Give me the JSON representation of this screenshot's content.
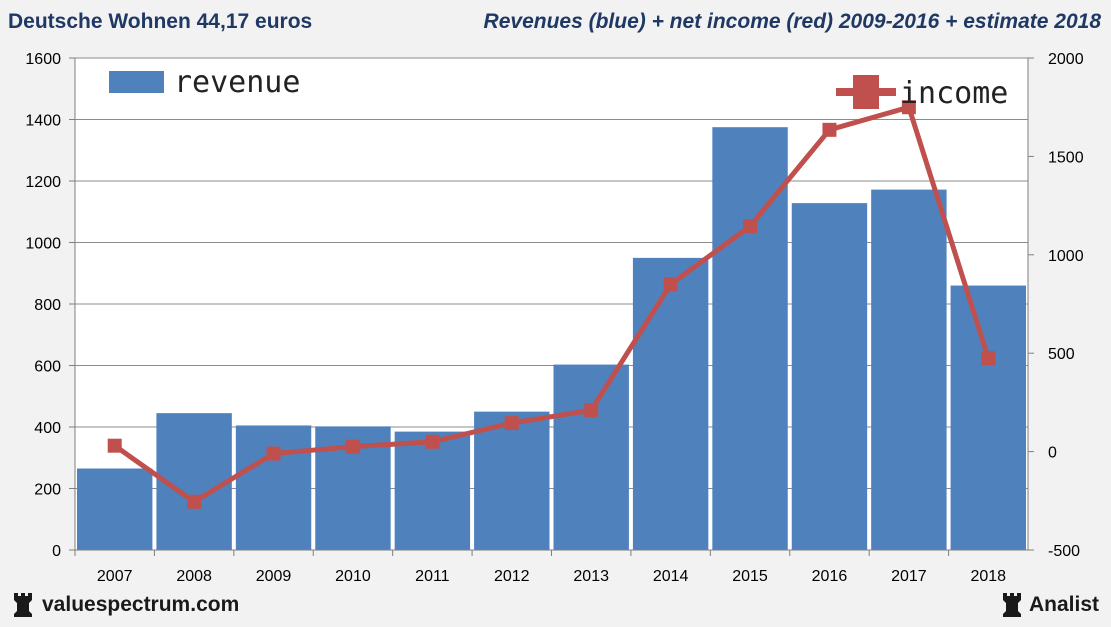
{
  "header": {
    "left_title": "Deutsche Wohnen 44,17 euros",
    "right_title": "Revenues (blue) + net income (red) 2009-2016 + estimate 2018"
  },
  "footer": {
    "left_brand": "valuespectrum.com",
    "right_brand": "Analist",
    "icon": "chess-rook-icon"
  },
  "colors": {
    "bar": "#4f81bd",
    "line": "#c0504d",
    "grid": "#8c8c8c"
  },
  "chart_data": {
    "type": "bar",
    "categories": [
      "2007",
      "2008",
      "2009",
      "2010",
      "2011",
      "2012",
      "2013",
      "2014",
      "2015",
      "2016",
      "2017",
      "2018"
    ],
    "series": [
      {
        "name": "revenue",
        "type": "bar",
        "axis": "left",
        "values": [
          265,
          445,
          405,
          402,
          385,
          450,
          603,
          950,
          1375,
          1128,
          1172,
          860
        ]
      },
      {
        "name": "income",
        "type": "line",
        "axis": "right",
        "values": [
          30,
          -255,
          -10,
          25,
          50,
          145,
          210,
          850,
          1145,
          1635,
          1750,
          475
        ]
      }
    ],
    "y_left": {
      "min": 0,
      "max": 1600,
      "ticks": [
        "0",
        "200",
        "400",
        "600",
        "800",
        "1000",
        "1200",
        "1400",
        "1600"
      ]
    },
    "y_right": {
      "min": -500,
      "max": 2000,
      "ticks": [
        "-500",
        "0",
        "500",
        "1000",
        "1500",
        "2000"
      ]
    },
    "grid": true,
    "legend": [
      {
        "label": "revenue",
        "placement": "top-left"
      },
      {
        "label": "income",
        "placement": "top-right"
      }
    ]
  }
}
